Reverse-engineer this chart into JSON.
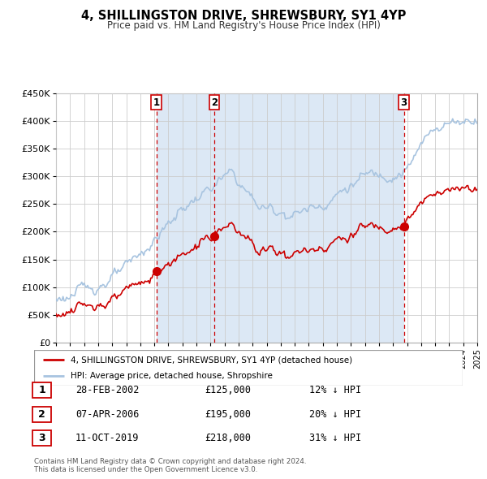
{
  "title": "4, SHILLINGSTON DRIVE, SHREWSBURY, SY1 4YP",
  "subtitle": "Price paid vs. HM Land Registry's House Price Index (HPI)",
  "ylim": [
    0,
    450000
  ],
  "yticks": [
    0,
    50000,
    100000,
    150000,
    200000,
    250000,
    300000,
    350000,
    400000,
    450000
  ],
  "ytick_labels": [
    "£0",
    "£50K",
    "£100K",
    "£150K",
    "£200K",
    "£250K",
    "£300K",
    "£350K",
    "£400K",
    "£450K"
  ],
  "hpi_color": "#a8c4e0",
  "price_color": "#cc0000",
  "vline_color": "#cc0000",
  "shade_color": "#dce8f5",
  "grid_color": "#cccccc",
  "plot_bg_color": "#ffffff",
  "legend_label_price": "4, SHILLINGSTON DRIVE, SHREWSBURY, SY1 4YP (detached house)",
  "legend_label_hpi": "HPI: Average price, detached house, Shropshire",
  "sales": [
    {
      "num": 1,
      "date_label": "28-FEB-2002",
      "price": 125000,
      "pct": "12%",
      "x_year": 2002.16
    },
    {
      "num": 2,
      "date_label": "07-APR-2006",
      "price": 195000,
      "pct": "20%",
      "x_year": 2006.27
    },
    {
      "num": 3,
      "date_label": "11-OCT-2019",
      "price": 218000,
      "pct": "31%",
      "x_year": 2019.78
    }
  ],
  "footnote": "Contains HM Land Registry data © Crown copyright and database right 2024.\nThis data is licensed under the Open Government Licence v3.0.",
  "xmin": 1995,
  "xmax": 2025
}
